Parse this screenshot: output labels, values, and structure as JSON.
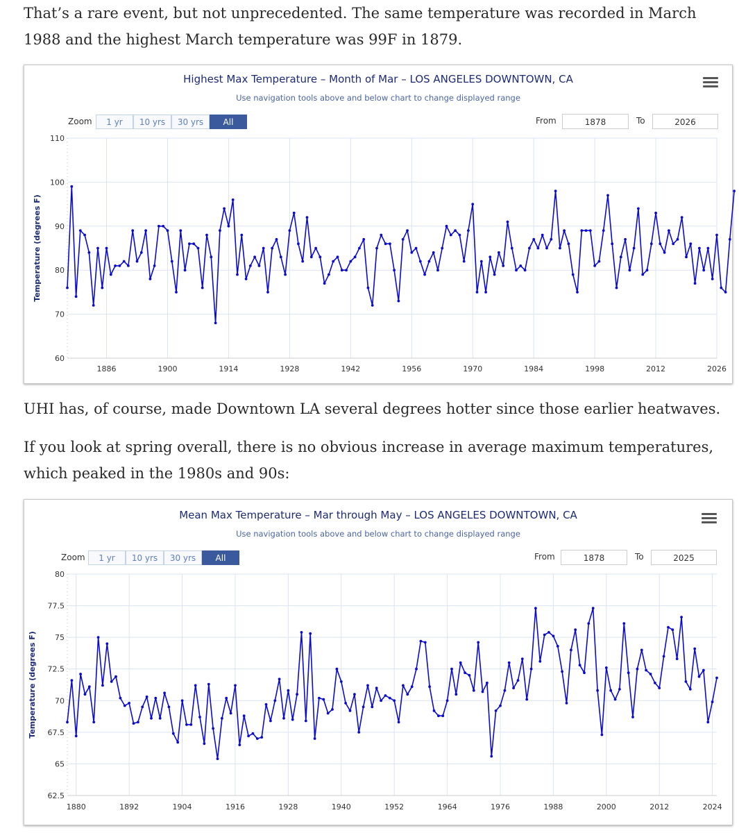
{
  "article": {
    "para1": "That’s a rare event, but not unprecedented. The same temperature was recorded in March 1988 and the highest March temperature was 99F in 1879.",
    "para2": "UHI has, of course, made Downtown LA several degrees hotter since those earlier heatwaves.",
    "para3": "If you look at spring overall, there is no obvious increase in average maximum temperatures, which peaked in the 1980s and 90s:"
  },
  "charts_ui": [
    {
      "title": "Highest Max Temperature – Month of Mar – LOS ANGELES DOWNTOWN, CA",
      "subtitle": "Use navigation tools above and below chart to change displayed range",
      "zoom_label": "Zoom",
      "zoom_buttons": [
        "1 yr",
        "10 yrs",
        "30 yrs",
        "All"
      ],
      "zoom_active": "All",
      "from_label": "From",
      "from_value": "1878",
      "to_label": "To",
      "to_value": "2026",
      "menu_icon": "hamburger-menu-icon",
      "line_color": "#0b0bd0",
      "grid_color": "#dbe3f2"
    },
    {
      "title": "Mean Max Temperature – Mar through May – LOS ANGELES DOWNTOWN, CA",
      "subtitle": "Use navigation tools above and below chart to change displayed range",
      "zoom_label": "Zoom",
      "zoom_buttons": [
        "1 yr",
        "10 yrs",
        "30 yrs",
        "All"
      ],
      "zoom_active": "All",
      "from_label": "From",
      "from_value": "1878",
      "to_label": "To",
      "to_value": "2025",
      "menu_icon": "hamburger-menu-icon",
      "line_color": "#0b0bd0",
      "grid_color": "#dbe3f2"
    }
  ],
  "chart_data": [
    {
      "type": "line",
      "title": "Highest Max Temperature – Month of Mar – LOS ANGELES DOWNTOWN, CA",
      "ylabel": "Temperature (degrees F)",
      "xlabel": "",
      "ylim": [
        60,
        110
      ],
      "xlim": [
        1877,
        2026
      ],
      "yticks": [
        60,
        70,
        80,
        90,
        100,
        110
      ],
      "xticks": [
        1886,
        1900,
        1914,
        1928,
        1942,
        1956,
        1970,
        1984,
        1998,
        2012,
        2026
      ],
      "grid": true,
      "x_start": 1877,
      "values": [
        76,
        99,
        74,
        89,
        88,
        84,
        72,
        85,
        76,
        85,
        79,
        81,
        81,
        82,
        81,
        89,
        82,
        84,
        89,
        78,
        81,
        90,
        90,
        89,
        82,
        75,
        89,
        80,
        86,
        86,
        85,
        76,
        88,
        83,
        68,
        89,
        94,
        90,
        96,
        79,
        88,
        78,
        81,
        83,
        81,
        85,
        75,
        85,
        87,
        83,
        79,
        89,
        93,
        86,
        82,
        92,
        83,
        85,
        83,
        77,
        79,
        82,
        83,
        80,
        80,
        82,
        83,
        85,
        87,
        76,
        72,
        85,
        88,
        86,
        86,
        80,
        73,
        87,
        89,
        84,
        85,
        82,
        79,
        82,
        84,
        80,
        85,
        90,
        88,
        89,
        88,
        82,
        89,
        95,
        75,
        82,
        75,
        83,
        79,
        84,
        81,
        91,
        85,
        80,
        81,
        80,
        85,
        87,
        85,
        88,
        85,
        87,
        98,
        85,
        89,
        86,
        79,
        75,
        89,
        89,
        89,
        81,
        82,
        89,
        97,
        86,
        76,
        83,
        87,
        80,
        85,
        94,
        79,
        80,
        86,
        93,
        86,
        84,
        89,
        86,
        87,
        92,
        83,
        86,
        77,
        85,
        80,
        85,
        78,
        88,
        76,
        75,
        87,
        98
      ]
    },
    {
      "type": "line",
      "title": "Mean Max Temperature – Mar through May – LOS ANGELES DOWNTOWN, CA",
      "ylabel": "Temperature (degrees F)",
      "xlabel": "",
      "ylim": [
        62.5,
        80
      ],
      "xlim": [
        1878,
        2025
      ],
      "yticks": [
        62.5,
        65,
        67.5,
        70,
        72.5,
        75,
        77.5,
        80
      ],
      "ytick_labels": [
        "62.5",
        "65",
        "67.5",
        "70",
        "72.5",
        "75",
        "77.5",
        "80"
      ],
      "xticks": [
        1880,
        1892,
        1904,
        1916,
        1928,
        1940,
        1952,
        1964,
        1976,
        1988,
        2000,
        2012,
        2024
      ],
      "grid": true,
      "x_start": 1878,
      "values": [
        68.3,
        71.6,
        67.2,
        72.1,
        70.5,
        71.1,
        68.3,
        75.0,
        71.2,
        74.5,
        71.5,
        71.9,
        70.2,
        69.6,
        69.8,
        68.2,
        68.3,
        69.5,
        70.3,
        68.6,
        70.2,
        68.6,
        70.6,
        69.5,
        67.4,
        66.7,
        70.0,
        68.1,
        68.1,
        71.2,
        68.7,
        66.6,
        71.3,
        67.8,
        65.4,
        68.6,
        70.2,
        69.0,
        71.2,
        66.5,
        68.8,
        67.2,
        67.4,
        67.0,
        67.1,
        69.7,
        68.4,
        70.0,
        71.7,
        68.6,
        70.8,
        68.5,
        70.5,
        75.4,
        68.4,
        75.3,
        67.0,
        70.2,
        70.1,
        69.0,
        69.3,
        72.5,
        71.5,
        69.8,
        69.2,
        70.5,
        67.5,
        69.5,
        71.2,
        69.5,
        71.0,
        70.0,
        70.4,
        70.2,
        70.0,
        68.3,
        71.2,
        70.5,
        71.1,
        72.5,
        74.7,
        74.6,
        71.1,
        69.2,
        68.8,
        68.8,
        70.0,
        72.5,
        70.5,
        73.0,
        72.2,
        72.0,
        70.8,
        74.6,
        70.7,
        71.4,
        65.6,
        69.2,
        69.6,
        70.8,
        73.0,
        71.0,
        71.6,
        73.3,
        70.1,
        72.5,
        77.3,
        73.1,
        75.2,
        75.4,
        75.1,
        74.3,
        72.3,
        69.8,
        74.0,
        75.6,
        72.8,
        72.2,
        76.1,
        77.3,
        70.8,
        67.3,
        72.6,
        70.8,
        70.1,
        70.9,
        76.1,
        72.2,
        68.7,
        72.5,
        74.0,
        72.4,
        72.1,
        71.4,
        71.0,
        73.5,
        75.8,
        75.6,
        73.3,
        76.6,
        71.5,
        70.9,
        74.1,
        71.9,
        72.4,
        68.3,
        69.9,
        71.8
      ]
    }
  ]
}
